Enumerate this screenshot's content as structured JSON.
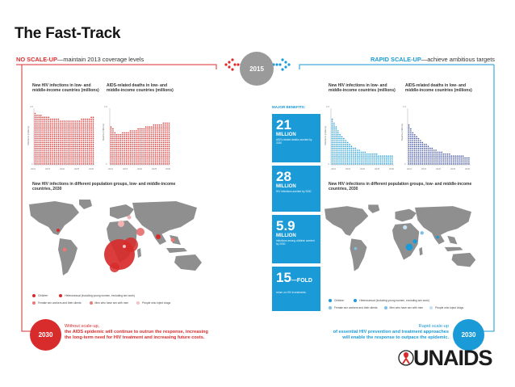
{
  "title": "The Fast-Track",
  "no_scaleup": {
    "head_bold": "NO SCALE-UP",
    "head_rest": "—maintain 2013 coverage levels"
  },
  "rapid_scaleup": {
    "head_bold": "RAPID SCALE-UP",
    "head_rest": "—achieve ambitious targets"
  },
  "year_center": "2015",
  "year_end": "2030",
  "left_charts": {
    "infections_title_1": "New HIV infections in low- and",
    "infections_title_2": "middle-income countries (millions)",
    "deaths_title_1": "AIDS-related deaths in low- and",
    "deaths_title_2": "middle-income countries (millions)",
    "y_label_infections": "Infections (millions)",
    "y_label_deaths": "Deaths (millions)"
  },
  "right_charts": {
    "infections_title_1": "New HIV infections in low- and",
    "infections_title_2": "middle-income countries (millions)",
    "deaths_title_1": "AIDS-related deaths in low- and",
    "deaths_title_2": "middle-income countries (millions)",
    "y_label_infections": "Infections (millions)",
    "y_label_deaths": "Deaths (millions)"
  },
  "y_ticks": [
    "2.5",
    "0"
  ],
  "x_ticks": [
    "2010",
    "2015",
    "2020",
    "2025",
    "2030"
  ],
  "map_title_1": "New HIV infections in different population groups, low- and middle-income",
  "map_title_2": "countries, 2030",
  "legend": {
    "children": "Children",
    "heterosexual": "Heterosexual (including young women, excluding sex work)",
    "sex_workers": "Female sex workers and their clients",
    "msm": "Men who have sex with men",
    "pwid": "People who inject drugs"
  },
  "benefits": {
    "label": "MAJOR BENEFITS:",
    "items": [
      {
        "number": "21",
        "unit": "MILLION",
        "desc": "AIDS-related deaths averted by 2030"
      },
      {
        "number": "28",
        "unit": "MILLION",
        "desc": "HIV infections averted by 2030"
      },
      {
        "number": "5.9",
        "unit": "MILLION",
        "desc": "infections among children averted by 2030"
      },
      {
        "number": "15",
        "suffix": "—FOLD",
        "unit": "",
        "desc": "return on HIV investments"
      }
    ]
  },
  "footer_left": {
    "line1": "Without scale-up,",
    "line2": "the AIDS epidemic will continue to outrun the response, increasing",
    "line3": "the long-term need for HIV treatment and increasing future costs."
  },
  "footer_right": {
    "line1": "Rapid scale-up",
    "line2": "of essential HIV prevention and treatment approaches",
    "line3": "will enable the response to outpace the epidemic."
  },
  "logo_text": "UNAIDS",
  "colors": {
    "red": "#d82c2c",
    "blue": "#1a9ad6",
    "dark_blue": "#3b4d9b",
    "gray": "#9a9a9a",
    "map_gray": "#8f8f8f"
  }
}
